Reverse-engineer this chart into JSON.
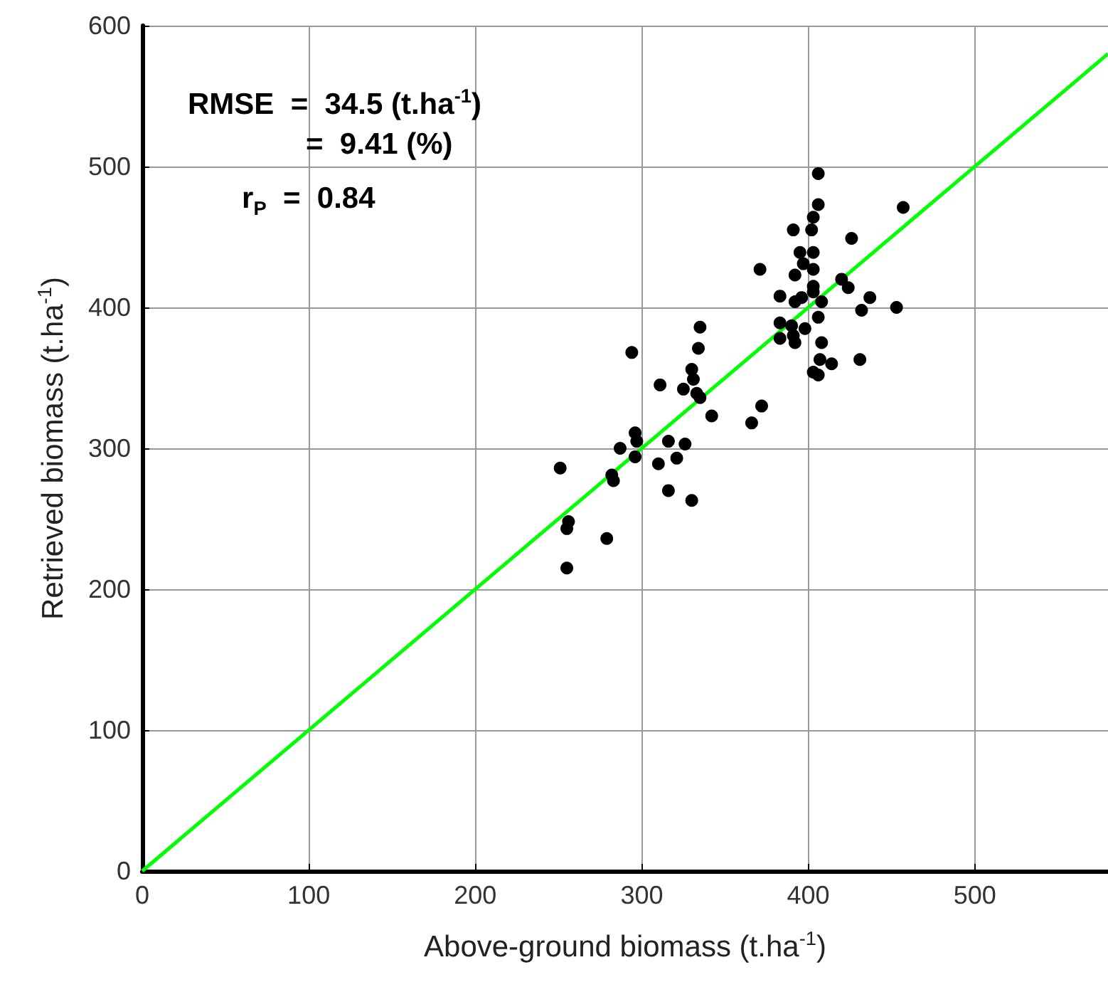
{
  "chart_data": {
    "type": "scatter",
    "xlabel": "Above-ground biomass (t.ha$^{-1}$)",
    "ylabel": "Retrieved biomass (t.ha$^{-1}$)",
    "annotations": [
      "RMSE  =  34.5 (t.ha$^{-1}$)",
      "=  9.41 (%)",
      "r$_{P}$  =  0.84"
    ],
    "xlim": [
      0,
      580
    ],
    "ylim": [
      0,
      600
    ],
    "xticks": [
      0,
      100,
      200,
      300,
      400,
      500
    ],
    "yticks": [
      0,
      100,
      200,
      300,
      400,
      500,
      600
    ],
    "grid": true,
    "marker": "circle",
    "series": [
      {
        "color": "#000000",
        "x": [
          406,
          406,
          403,
          391,
          402,
          426,
          457,
          395,
          403,
          397,
          371,
          403,
          392,
          420,
          403,
          424,
          403,
          383,
          396,
          392,
          408,
          437,
          453,
          432,
          406,
          383,
          390,
          398,
          391,
          383,
          392,
          408,
          407,
          414,
          431,
          403,
          406,
          335,
          334,
          294,
          311,
          330,
          331,
          325,
          333,
          335,
          342,
          372,
          366,
          296,
          297,
          287,
          296,
          316,
          326,
          321,
          310,
          282,
          283,
          316,
          330,
          251,
          256,
          255,
          279,
          255
        ],
        "values": [
          495,
          473,
          464,
          455,
          455,
          449,
          471,
          439,
          439,
          431,
          427,
          427,
          423,
          420,
          415,
          414,
          411,
          408,
          407,
          404,
          404,
          407,
          400,
          398,
          393,
          389,
          387,
          385,
          380,
          378,
          375,
          375,
          363,
          360,
          363,
          354,
          352,
          386,
          371,
          368,
          345,
          356,
          349,
          342,
          339,
          336,
          323,
          330,
          318,
          311,
          305,
          300,
          294,
          305,
          303,
          293,
          289,
          281,
          277,
          270,
          263,
          286,
          248,
          243,
          236,
          215
        ]
      },
      {
        "type": "line",
        "color": "#00ff00",
        "line_style": "solid",
        "marker": "none",
        "x": [
          0,
          580
        ],
        "values": [
          0,
          580
        ]
      }
    ]
  }
}
